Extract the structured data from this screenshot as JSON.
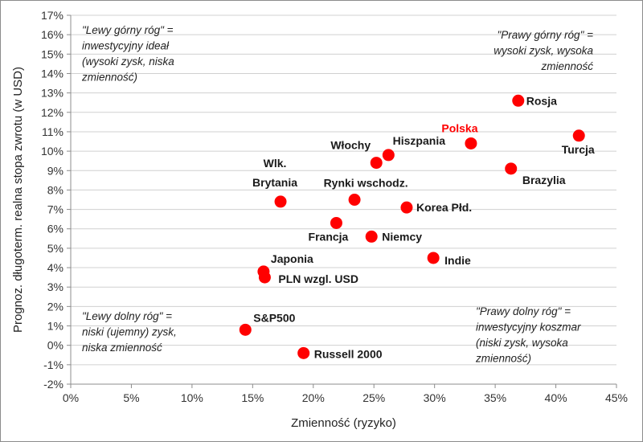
{
  "chart_data": {
    "type": "scatter",
    "xlabel": "Zmienność  (ryzyko)",
    "ylabel": "Prognoz. długoterm. realna stopa zwrotu (w USD)",
    "xlim": [
      0,
      45
    ],
    "ylim": [
      -2,
      17
    ],
    "x_ticks": [
      "0%",
      "5%",
      "10%",
      "15%",
      "20%",
      "25%",
      "30%",
      "35%",
      "40%",
      "45%"
    ],
    "y_ticks": [
      "-2%",
      "-1%",
      "0%",
      "1%",
      "2%",
      "3%",
      "4%",
      "5%",
      "6%",
      "7%",
      "8%",
      "9%",
      "10%",
      "11%",
      "12%",
      "13%",
      "14%",
      "15%",
      "16%",
      "17%"
    ],
    "grid": "horizontal",
    "marker_color": "#ff0000",
    "highlight_label_color": "#ff0000",
    "points": [
      {
        "label": "Rosja",
        "x": 36.9,
        "y": 12.6
      },
      {
        "label": "Turcja",
        "x": 41.9,
        "y": 10.8
      },
      {
        "label": "Polska",
        "x": 33.0,
        "y": 10.4,
        "highlight": true
      },
      {
        "label": "Hiszpania",
        "x": 26.2,
        "y": 9.8
      },
      {
        "label": "Włochy",
        "x": 25.2,
        "y": 9.4
      },
      {
        "label": "Brazylia",
        "x": 36.3,
        "y": 9.1
      },
      {
        "label": "Rynki wschodz.",
        "x": 23.4,
        "y": 7.5
      },
      {
        "label": "Wlk. Brytania",
        "x": 17.3,
        "y": 7.4
      },
      {
        "label": "Korea Płd.",
        "x": 27.7,
        "y": 7.1
      },
      {
        "label": "Francja",
        "x": 21.9,
        "y": 6.3
      },
      {
        "label": "Niemcy",
        "x": 24.8,
        "y": 5.6
      },
      {
        "label": "Indie",
        "x": 29.9,
        "y": 4.5
      },
      {
        "label": "Japonia",
        "x": 15.9,
        "y": 3.8
      },
      {
        "label": "PLN wzgl. USD",
        "x": 16.0,
        "y": 3.5
      },
      {
        "label": "S&P500",
        "x": 14.4,
        "y": 0.8
      },
      {
        "label": "Russell 2000",
        "x": 19.2,
        "y": -0.4
      }
    ],
    "annotations": [
      {
        "corner": "top-left",
        "lines": [
          "\"Lewy górny róg\" =",
          "inwestycyjny ideał",
          "(wysoki zysk, niska",
          "zmienność)"
        ]
      },
      {
        "corner": "top-right",
        "lines": [
          "\"Prawy górny róg\" =",
          "wysoki zysk, wysoka",
          "zmienność"
        ]
      },
      {
        "corner": "bottom-left",
        "lines": [
          "\"Lewy dolny róg\" =",
          "niski (ujemny) zysk,",
          "niska zmienność"
        ]
      },
      {
        "corner": "bottom-right",
        "lines": [
          "\"Prawy dolny róg\" =",
          "inwestycyjny koszmar",
          "(niski zysk, wysoka",
          "zmienność)"
        ]
      }
    ]
  }
}
